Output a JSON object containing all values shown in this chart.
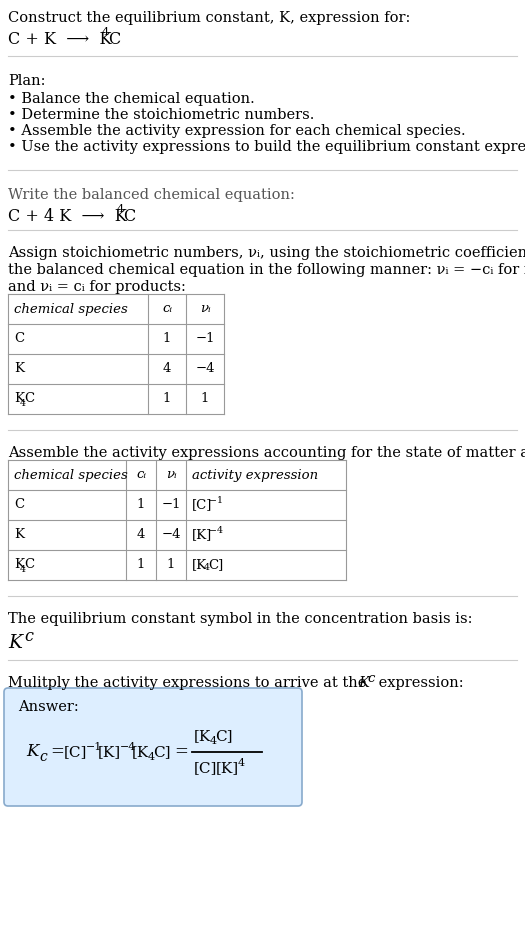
{
  "title_line1": "Construct the equilibrium constant, K, expression for:",
  "plan_header": "Plan:",
  "plan_bullets": [
    "• Balance the chemical equation.",
    "• Determine the stoichiometric numbers.",
    "• Assemble the activity expression for each chemical species.",
    "• Use the activity expressions to build the equilibrium constant expression."
  ],
  "balanced_header": "Write the balanced chemical equation:",
  "assign_text_line1": "Assign stoichiometric numbers, νᵢ, using the stoichiometric coefficients, cᵢ, from",
  "assign_text_line2": "the balanced chemical equation in the following manner: νᵢ = −cᵢ for reactants",
  "assign_text_line3": "and νᵢ = cᵢ for products:",
  "table1_headers": [
    "chemical species",
    "cᵢ",
    "νᵢ"
  ],
  "table1_rows": [
    [
      "C",
      "1",
      "−1"
    ],
    [
      "K",
      "4",
      "−4"
    ],
    [
      "K4C",
      "1",
      "1"
    ]
  ],
  "assemble_header": "Assemble the activity expressions accounting for the state of matter and νᵢ:",
  "table2_headers": [
    "chemical species",
    "cᵢ",
    "νᵢ",
    "activity expression"
  ],
  "table2_rows": [
    [
      "C",
      "1",
      "−1",
      "C"
    ],
    [
      "K",
      "4",
      "−4",
      "K"
    ],
    [
      "K4C",
      "1",
      "1",
      "K4C"
    ]
  ],
  "kc_symbol_text": "The equilibrium constant symbol in the concentration basis is:",
  "multiply_text": "Mulitply the activity expressions to arrive at the ",
  "answer_label": "Answer:",
  "answer_box_color": "#ddeeff",
  "answer_border_color": "#88aacc",
  "background_color": "#ffffff",
  "text_color": "#000000",
  "gray_text_color": "#555555",
  "table_border_color": "#999999",
  "hline_color": "#cccccc"
}
